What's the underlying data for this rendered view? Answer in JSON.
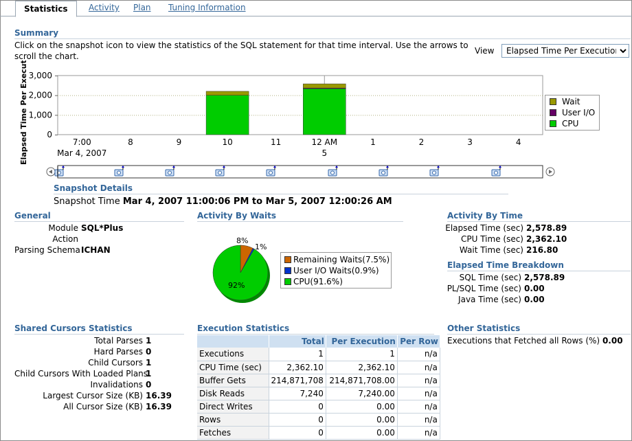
{
  "tabs": [
    {
      "label": "Statistics",
      "active": true
    },
    {
      "label": "Activity",
      "active": false
    },
    {
      "label": "Plan",
      "active": false
    },
    {
      "label": "Tuning Information",
      "active": false
    }
  ],
  "summary": {
    "heading": "Summary",
    "instructions_line1": "Click on the snapshot icon to view the statistics of the SQL statement for that time interval. Use the arrows to",
    "instructions_line2": "scroll the chart.",
    "view_label": "View",
    "view_selected": "Elapsed Time Per Execution"
  },
  "chart_data": {
    "type": "bar",
    "stacked": true,
    "ylabel": "Elapsed Time Per Executio",
    "ylim": [
      0,
      3000
    ],
    "yticks": [
      "3,000",
      "2,000",
      "1,000",
      "0"
    ],
    "ytick_values": [
      3000,
      2000,
      1000,
      0
    ],
    "categories": [
      "7:00",
      "8",
      "9",
      "10",
      "11",
      "12 AM",
      "1",
      "2",
      "3",
      "4"
    ],
    "category_sublabels": {
      "0": "Mar 4, 2007",
      "5": "5"
    },
    "series": [
      {
        "name": "CPU",
        "color": "#00cc00",
        "values": [
          0,
          0,
          0,
          2000,
          0,
          2362,
          0,
          0,
          0,
          0
        ]
      },
      {
        "name": "User I/O",
        "color": "#660066",
        "values": [
          0,
          0,
          0,
          0,
          0,
          5,
          0,
          0,
          0,
          0
        ]
      },
      {
        "name": "Wait",
        "color": "#999900",
        "values": [
          0,
          0,
          0,
          200,
          0,
          212,
          0,
          0,
          0,
          0
        ]
      }
    ],
    "legend": [
      "Wait",
      "User I/O",
      "CPU"
    ],
    "legend_colors": [
      "#999900",
      "#660066",
      "#00cc00"
    ],
    "grid": true,
    "legend_position": "right"
  },
  "snapshot_details": {
    "heading": "Snapshot Details",
    "label": "Snapshot Time",
    "value": "Mar 4, 2007 11:00:06 PM to Mar 5, 2007 12:00:26 AM"
  },
  "general": {
    "heading": "General",
    "rows": [
      {
        "label": "Module",
        "value": "SQL*Plus"
      },
      {
        "label": "Action",
        "value": ""
      },
      {
        "label": "Parsing Schema",
        "value": "ICHAN"
      }
    ]
  },
  "activity_by_waits": {
    "heading": "Activity By Waits",
    "pie": [
      {
        "name": "Remaining Waits(7.5%)",
        "value": 7.5,
        "color": "#cc6600",
        "label": "8%"
      },
      {
        "name": "User I/O Waits(0.9%)",
        "value": 0.9,
        "color": "#0033cc",
        "label": "1%"
      },
      {
        "name": "CPU(91.6%)",
        "value": 91.6,
        "color": "#00cc00",
        "label": "92%"
      }
    ]
  },
  "activity_by_time": {
    "heading": "Activity By Time",
    "rows": [
      {
        "label": "Elapsed Time (sec)",
        "value": "2,578.89"
      },
      {
        "label": "CPU Time (sec)",
        "value": "2,362.10"
      },
      {
        "label": "Wait Time (sec)",
        "value": "216.80"
      }
    ]
  },
  "elapsed_breakdown": {
    "heading": "Elapsed Time Breakdown",
    "rows": [
      {
        "label": "SQL Time (sec)",
        "value": "2,578.89"
      },
      {
        "label": "PL/SQL Time (sec)",
        "value": "0.00"
      },
      {
        "label": "Java Time (sec)",
        "value": "0.00"
      }
    ]
  },
  "shared_cursors": {
    "heading": "Shared Cursors Statistics",
    "rows": [
      {
        "label": "Total Parses",
        "value": "1"
      },
      {
        "label": "Hard Parses",
        "value": "0"
      },
      {
        "label": "Child Cursors",
        "value": "1"
      },
      {
        "label": "Child Cursors With Loaded Plans",
        "value": "1"
      },
      {
        "label": "Invalidations",
        "value": "0"
      },
      {
        "label": "Largest Cursor Size (KB)",
        "value": "16.39"
      },
      {
        "label": "All Cursor Size (KB)",
        "value": "16.39"
      }
    ]
  },
  "execution_stats": {
    "heading": "Execution Statistics",
    "columns": [
      "",
      "Total",
      "Per Execution",
      "Per Row"
    ],
    "rows": [
      [
        "Executions",
        "1",
        "1",
        "n/a"
      ],
      [
        "CPU Time (sec)",
        "2,362.10",
        "2,362.10",
        "n/a"
      ],
      [
        "Buffer Gets",
        "214,871,708",
        "214,871,708.00",
        "n/a"
      ],
      [
        "Disk Reads",
        "7,240",
        "7,240.00",
        "n/a"
      ],
      [
        "Direct Writes",
        "0",
        "0.00",
        "n/a"
      ],
      [
        "Rows",
        "0",
        "0.00",
        "n/a"
      ],
      [
        "Fetches",
        "0",
        "0.00",
        "n/a"
      ]
    ]
  },
  "other_stats": {
    "heading": "Other Statistics",
    "label": "Executions that Fetched all Rows (%)",
    "value": "0.00"
  }
}
